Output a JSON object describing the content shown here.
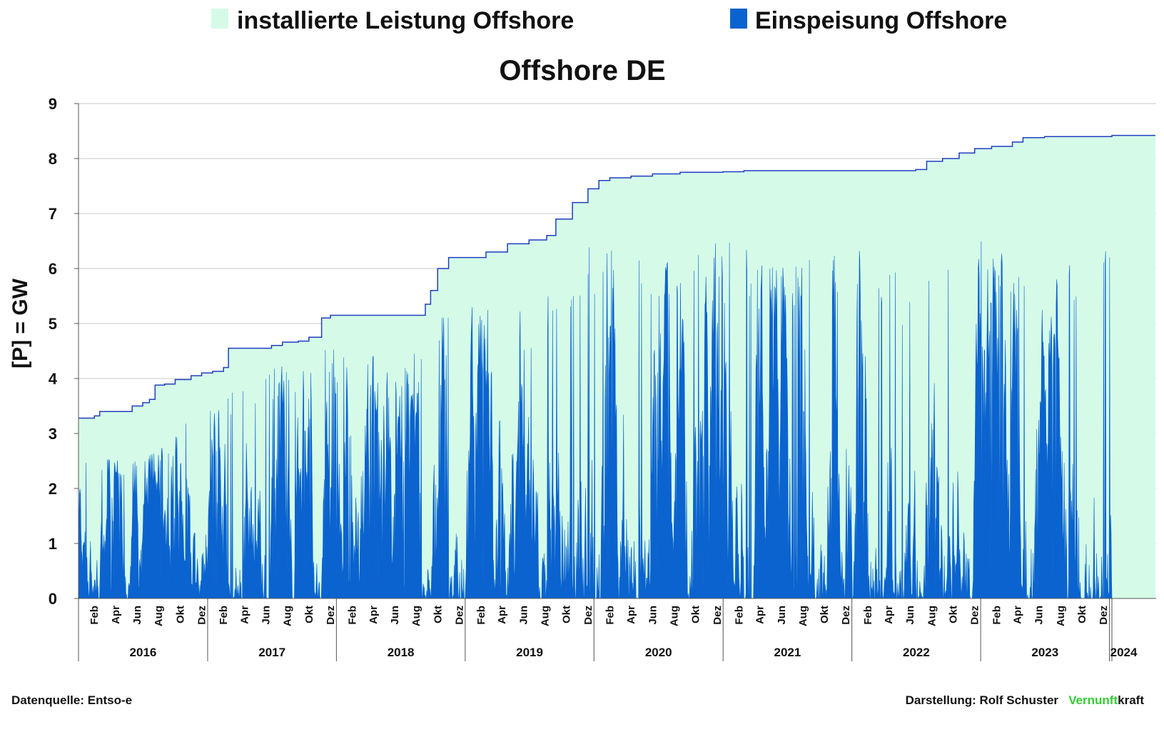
{
  "colors": {
    "installed_fill": "#d5fbe8",
    "installed_line": "#1f3fbf",
    "feed_in": "#0b63cf",
    "grid": "#c8c8c8",
    "axis": "#555555",
    "brand_green": "#33cc33"
  },
  "chart_data": {
    "type": "area",
    "title": "Offshore DE",
    "ylabel": "[P] = GW",
    "ylim": [
      0,
      9
    ],
    "yticks": [
      "0",
      "1",
      "2",
      "3",
      "4",
      "5",
      "6",
      "7",
      "8",
      "9"
    ],
    "grid": true,
    "legend_position": "top",
    "month_labels": [
      "Feb",
      "Apr",
      "Jun",
      "Aug",
      "Okt",
      "Dez"
    ],
    "years": [
      "2016",
      "2017",
      "2018",
      "2019",
      "2020",
      "2021",
      "2022",
      "2023",
      "2024"
    ],
    "x_range": [
      "2016-01-01",
      "2024-01-08"
    ],
    "series": [
      {
        "name": "installierte Leistung Offshore",
        "kind": "area_step",
        "x": [
          "2016-01-01",
          "2016-02-15",
          "2016-03-01",
          "2016-05-01",
          "2016-06-01",
          "2016-07-01",
          "2016-07-20",
          "2016-08-05",
          "2016-09-01",
          "2016-10-01",
          "2016-11-15",
          "2016-12-15",
          "2017-01-15",
          "2017-02-15",
          "2017-03-01",
          "2017-06-01",
          "2017-07-01",
          "2017-08-01",
          "2017-09-15",
          "2017-10-15",
          "2017-11-20",
          "2017-12-15",
          "2018-08-20",
          "2018-09-10",
          "2018-09-25",
          "2018-10-15",
          "2018-11-15",
          "2019-01-15",
          "2019-03-01",
          "2019-05-01",
          "2019-07-01",
          "2019-08-20",
          "2019-09-15",
          "2019-11-01",
          "2019-12-15",
          "2020-01-15",
          "2020-02-15",
          "2020-04-15",
          "2020-06-15",
          "2020-09-01",
          "2021-01-01",
          "2021-03-01",
          "2022-06-01",
          "2022-07-01",
          "2022-08-01",
          "2022-09-15",
          "2022-11-01",
          "2022-12-15",
          "2023-02-01",
          "2023-04-01",
          "2023-05-01",
          "2023-07-01",
          "2023-11-01",
          "2024-01-08"
        ],
        "y": [
          3.28,
          3.32,
          3.4,
          3.4,
          3.5,
          3.56,
          3.62,
          3.88,
          3.9,
          3.98,
          4.05,
          4.1,
          4.13,
          4.2,
          4.55,
          4.55,
          4.6,
          4.66,
          4.68,
          4.75,
          5.1,
          5.15,
          5.15,
          5.35,
          5.6,
          6.0,
          6.2,
          6.2,
          6.3,
          6.45,
          6.52,
          6.6,
          6.9,
          7.2,
          7.45,
          7.6,
          7.65,
          7.68,
          7.72,
          7.75,
          7.76,
          7.78,
          7.78,
          7.8,
          7.95,
          8.0,
          8.1,
          8.18,
          8.22,
          8.3,
          8.38,
          8.4,
          8.4,
          8.42
        ]
      },
      {
        "name": "Einspeisung Offshore",
        "kind": "area_hourly",
        "envelope_x": [
          "2016-01-01",
          "2016-07-01",
          "2017-01-01",
          "2017-07-01",
          "2018-01-01",
          "2018-07-01",
          "2018-10-01",
          "2019-01-01",
          "2019-07-01",
          "2019-11-01",
          "2020-01-01",
          "2020-07-01",
          "2021-01-01",
          "2021-07-01",
          "2022-01-01",
          "2022-07-01",
          "2023-01-01",
          "2023-07-01",
          "2024-01-08"
        ],
        "envelope_peak": [
          2.8,
          2.5,
          3.6,
          4.2,
          4.6,
          4.3,
          5.0,
          5.6,
          5.2,
          6.1,
          6.5,
          6.2,
          6.6,
          6.0,
          6.7,
          5.6,
          6.6,
          5.8,
          6.8
        ]
      }
    ]
  },
  "legend": {
    "installed_label": "installierte Leistung Offshore",
    "feed_label": "Einspeisung Offshore"
  },
  "footer": {
    "source": "Datenquelle: Entso-e",
    "credit": "Darstellung:  Rolf Schuster",
    "brand_green": "Vernunft",
    "brand_black": "kraft"
  }
}
